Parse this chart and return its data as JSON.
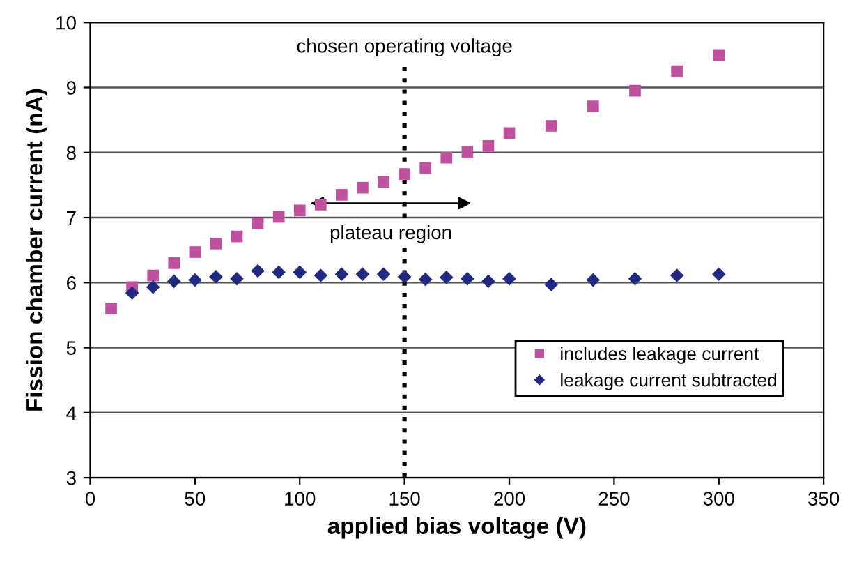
{
  "chart_data": {
    "type": "scatter",
    "xlabel": "applied bias voltage (V)",
    "ylabel": "Fission chamber current (nA)",
    "xlim": [
      0,
      350
    ],
    "xticks": [
      0,
      50,
      100,
      150,
      200,
      250,
      300,
      350
    ],
    "ylim": [
      3,
      10
    ],
    "yticks": [
      3,
      4,
      5,
      6,
      7,
      8,
      9,
      10
    ],
    "grid": "y",
    "legend": "bottom right",
    "series": [
      {
        "name": "includes leakage current",
        "color": "#c050a0",
        "marker": "square",
        "x": [
          10,
          20,
          30,
          40,
          50,
          60,
          70,
          80,
          90,
          100,
          110,
          120,
          130,
          140,
          150,
          160,
          170,
          180,
          190,
          200,
          220,
          240,
          260,
          280,
          300
        ],
        "values": [
          5.6,
          5.93,
          6.11,
          6.3,
          6.47,
          6.6,
          6.71,
          6.91,
          7.01,
          7.11,
          7.2,
          7.35,
          7.46,
          7.55,
          7.67,
          7.76,
          7.92,
          8.01,
          8.1,
          8.3,
          8.41,
          8.71,
          8.95,
          9.25,
          9.5
        ]
      },
      {
        "name": "leakage current subtracted",
        "color": "#1f2a80",
        "marker": "diamond",
        "x": [
          20,
          30,
          40,
          50,
          60,
          70,
          80,
          90,
          100,
          110,
          120,
          130,
          140,
          150,
          160,
          170,
          180,
          190,
          200,
          220,
          240,
          260,
          280,
          300
        ],
        "values": [
          5.84,
          5.93,
          6.02,
          6.04,
          6.09,
          6.06,
          6.18,
          6.16,
          6.16,
          6.11,
          6.13,
          6.13,
          6.13,
          6.09,
          6.05,
          6.08,
          6.06,
          6.02,
          6.06,
          5.97,
          6.04,
          6.06,
          6.11,
          6.13
        ]
      }
    ],
    "ref_lines": [
      {
        "axis": "x",
        "value": 150,
        "label": "chosen operating voltage",
        "color": "#000000",
        "line_style": "dotted"
      }
    ],
    "annotations": [
      "plateau region"
    ]
  }
}
